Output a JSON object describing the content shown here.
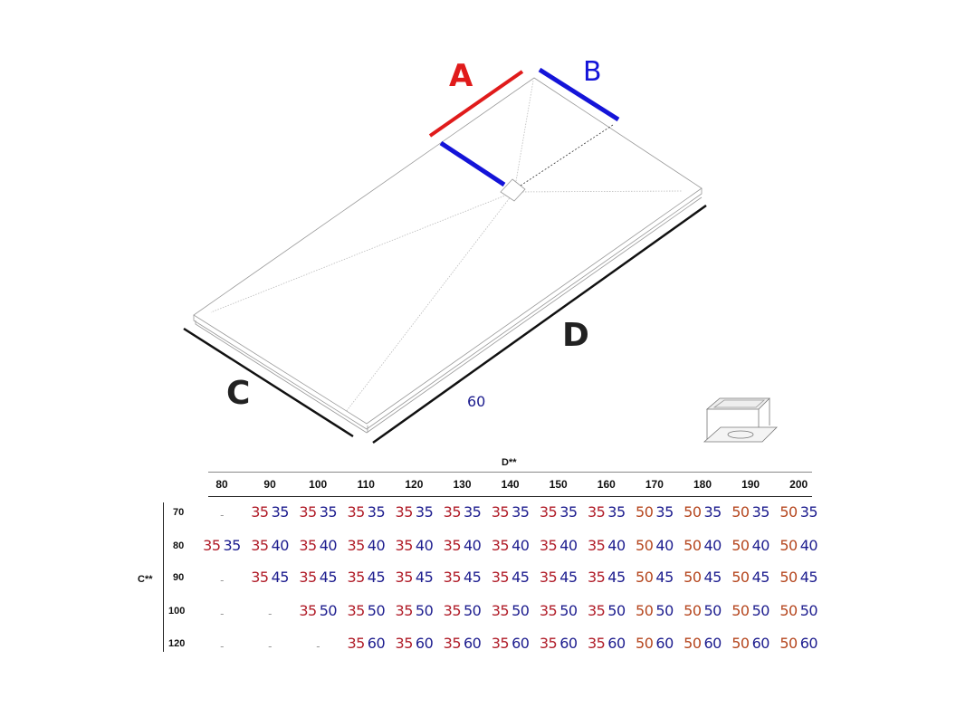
{
  "diagram": {
    "labels": {
      "a": "A",
      "b": "B",
      "c": "C",
      "d": "D"
    },
    "depth_note": "60",
    "colors": {
      "a": "#e01b1b",
      "b": "#1414d8",
      "dimension": "#111111",
      "outline": "#999999"
    },
    "icons": [
      "shower-tray",
      "drain-grate"
    ]
  },
  "table": {
    "col_header": "D**",
    "row_header": "C**",
    "columns": [
      "80",
      "90",
      "100",
      "110",
      "120",
      "130",
      "140",
      "150",
      "160",
      "170",
      "180",
      "190",
      "200"
    ],
    "colors": {
      "a_35": "#b01c28",
      "a_50": "#b5461e",
      "b": "#1c1c8e",
      "empty": "#999999"
    },
    "rows": [
      {
        "c": "70",
        "cells": [
          "-",
          "35 35",
          "35 35",
          "35 35",
          "35 35",
          "35 35",
          "35 35",
          "35 35",
          "35 35",
          "50 35",
          "50 35",
          "50 35",
          "50 35"
        ]
      },
      {
        "c": "80",
        "cells": [
          "35 35",
          "35 40",
          "35 40",
          "35 40",
          "35 40",
          "35 40",
          "35 40",
          "35 40",
          "35 40",
          "50 40",
          "50 40",
          "50 40",
          "50 40"
        ]
      },
      {
        "c": "90",
        "cells": [
          "-",
          "35 45",
          "35 45",
          "35 45",
          "35 45",
          "35 45",
          "35 45",
          "35 45",
          "35 45",
          "50 45",
          "50 45",
          "50 45",
          "50 45"
        ]
      },
      {
        "c": "100",
        "cells": [
          "-",
          "-",
          "35 50",
          "35 50",
          "35 50",
          "35 50",
          "35 50",
          "35 50",
          "35 50",
          "50 50",
          "50 50",
          "50 50",
          "50 50"
        ]
      },
      {
        "c": "120",
        "cells": [
          "-",
          "-",
          "-",
          "35 60",
          "35 60",
          "35 60",
          "35 60",
          "35 60",
          "35 60",
          "50 60",
          "50 60",
          "50 60",
          "50 60"
        ]
      }
    ]
  }
}
